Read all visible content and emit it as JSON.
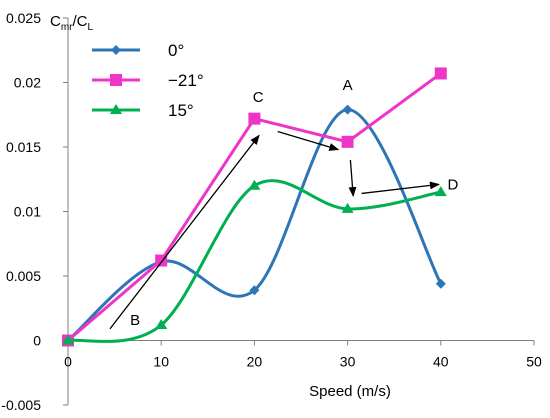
{
  "chart_data": {
    "type": "line",
    "title": "",
    "xlabel": "Speed (m/s)",
    "ylabel_main": "C",
    "ylabel_sub1": "mr",
    "ylabel_slash": "/C",
    "ylabel_sub2": "L",
    "xlim": [
      0,
      50
    ],
    "ylim": [
      -0.005,
      0.025
    ],
    "x_ticks": [
      0,
      10,
      20,
      30,
      40,
      50
    ],
    "x_tick_labels": [
      "0",
      "10",
      "20",
      "30",
      "40",
      "50"
    ],
    "y_ticks": [
      -0.005,
      0,
      0.005,
      0.01,
      0.015,
      0.02,
      0.025
    ],
    "y_tick_labels": [
      "-0.005",
      "0",
      "0.005",
      "0.01",
      "0.015",
      "0.02",
      "0.025"
    ],
    "grid": false,
    "legend_position": "top-left",
    "series": [
      {
        "name": "0°",
        "color": "#2E75B6",
        "marker": "diamond",
        "smooth": true,
        "x": [
          0,
          10,
          20,
          30,
          40
        ],
        "y": [
          0,
          0.0061,
          0.0039,
          0.0179,
          0.0044
        ]
      },
      {
        "name": "−21°",
        "color": "#EE35C7",
        "marker": "square",
        "smooth": false,
        "x": [
          0,
          10,
          20,
          30,
          40
        ],
        "y": [
          0,
          0.0062,
          0.0172,
          0.0154,
          0.0207
        ]
      },
      {
        "name": "15°",
        "color": "#00B050",
        "marker": "triangle",
        "smooth": true,
        "x": [
          0,
          10,
          20,
          30,
          40
        ],
        "y": [
          0,
          0.0012,
          0.012,
          0.0102,
          0.0115
        ]
      }
    ],
    "annotations": [
      {
        "label": "A",
        "x": 30,
        "y": 0.0194
      },
      {
        "label": "B",
        "x": 7.2,
        "y": 0.0012
      },
      {
        "label": "C",
        "x": 20.4,
        "y": 0.0185
      },
      {
        "label": "D",
        "x": 41.3,
        "y": 0.0117
      }
    ],
    "arrows": [
      {
        "from": [
          4.5,
          0.0009
        ],
        "to": [
          20.5,
          0.0159
        ]
      },
      {
        "from": [
          22.5,
          0.0162
        ],
        "to": [
          29,
          0.0148
        ]
      },
      {
        "from": [
          30.3,
          0.014
        ],
        "to": [
          30.6,
          0.0112
        ]
      },
      {
        "from": [
          31.5,
          0.0114
        ],
        "to": [
          39.8,
          0.0121
        ]
      }
    ]
  }
}
